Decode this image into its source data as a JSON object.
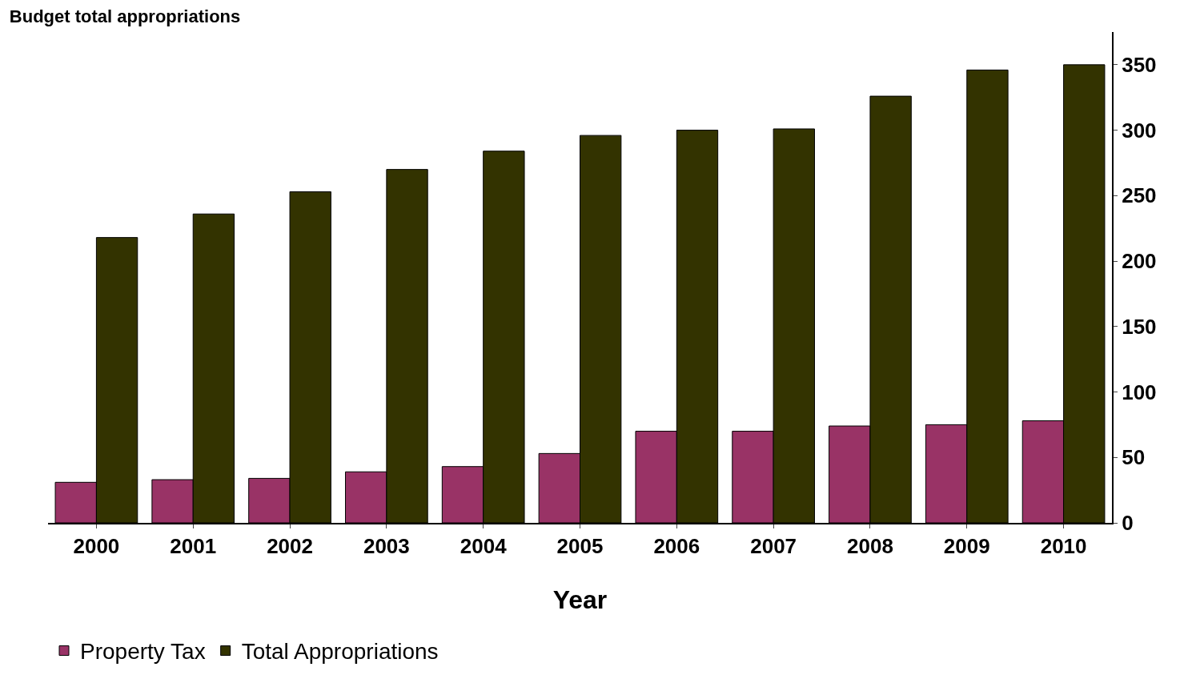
{
  "chart_data": {
    "type": "bar",
    "title": "Budget total appropriations",
    "xlabel": "Year",
    "categories": [
      "2000",
      "2001",
      "2002",
      "2003",
      "2004",
      "2005",
      "2006",
      "2007",
      "2008",
      "2009",
      "2010"
    ],
    "series": [
      {
        "name": "Property Tax",
        "color": "#993366",
        "values": [
          31,
          33,
          34,
          39,
          43,
          53,
          70,
          70,
          74,
          75,
          78
        ]
      },
      {
        "name": "Total Appropriations",
        "color": "#333300",
        "values": [
          218,
          236,
          253,
          270,
          284,
          296,
          300,
          301,
          326,
          346,
          350
        ]
      }
    ],
    "ylim": [
      0,
      375
    ],
    "yticks": [
      0,
      50,
      100,
      150,
      200,
      250,
      300,
      350
    ],
    "grid": false,
    "legend": "bottom left"
  }
}
